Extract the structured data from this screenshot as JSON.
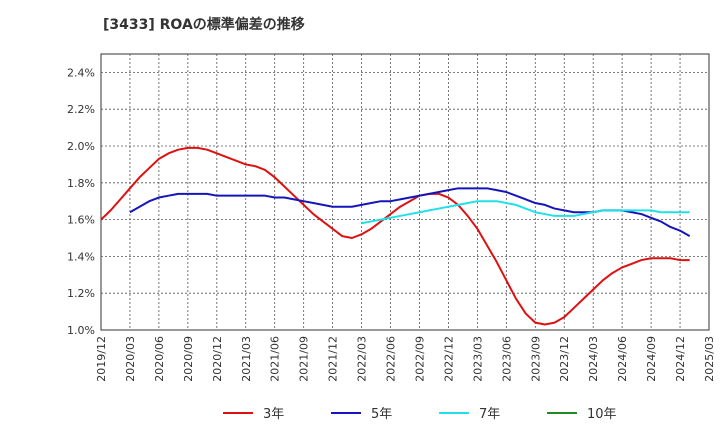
{
  "chart_data": {
    "type": "line",
    "title": "[3433]  ROAの標準偏差の推移",
    "xlabel": "",
    "ylabel": "",
    "ylim": [
      1.0,
      2.5
    ],
    "y_ticks": [
      "1.0%",
      "1.2%",
      "1.4%",
      "1.6%",
      "1.8%",
      "2.0%",
      "2.2%",
      "2.4%"
    ],
    "y_tick_values": [
      1.0,
      1.2,
      1.4,
      1.6,
      1.8,
      2.0,
      2.2,
      2.4
    ],
    "x_ticks": [
      "2019/12",
      "2020/03",
      "2020/06",
      "2020/09",
      "2020/12",
      "2021/03",
      "2021/06",
      "2021/09",
      "2021/12",
      "2022/03",
      "2022/06",
      "2022/09",
      "2022/12",
      "2023/03",
      "2023/06",
      "2023/09",
      "2023/12",
      "2024/03",
      "2024/06",
      "2024/09",
      "2024/12",
      "2025/03"
    ],
    "grid": true,
    "legend_position": "bottom",
    "series": [
      {
        "name": "3年",
        "color": "#dd1111",
        "points": [
          [
            "2019/12",
            1.6
          ],
          [
            "2020/01",
            1.65
          ],
          [
            "2020/02",
            1.71
          ],
          [
            "2020/03",
            1.77
          ],
          [
            "2020/04",
            1.83
          ],
          [
            "2020/05",
            1.88
          ],
          [
            "2020/06",
            1.93
          ],
          [
            "2020/07",
            1.96
          ],
          [
            "2020/08",
            1.98
          ],
          [
            "2020/09",
            1.99
          ],
          [
            "2020/10",
            1.99
          ],
          [
            "2020/11",
            1.98
          ],
          [
            "2020/12",
            1.96
          ],
          [
            "2021/01",
            1.94
          ],
          [
            "2021/02",
            1.92
          ],
          [
            "2021/03",
            1.9
          ],
          [
            "2021/04",
            1.89
          ],
          [
            "2021/05",
            1.87
          ],
          [
            "2021/06",
            1.83
          ],
          [
            "2021/07",
            1.78
          ],
          [
            "2021/08",
            1.73
          ],
          [
            "2021/09",
            1.68
          ],
          [
            "2021/10",
            1.63
          ],
          [
            "2021/11",
            1.59
          ],
          [
            "2021/12",
            1.55
          ],
          [
            "2022/01",
            1.51
          ],
          [
            "2022/02",
            1.5
          ],
          [
            "2022/03",
            1.52
          ],
          [
            "2022/04",
            1.55
          ],
          [
            "2022/05",
            1.59
          ],
          [
            "2022/06",
            1.63
          ],
          [
            "2022/07",
            1.67
          ],
          [
            "2022/08",
            1.7
          ],
          [
            "2022/09",
            1.73
          ],
          [
            "2022/10",
            1.74
          ],
          [
            "2022/11",
            1.74
          ],
          [
            "2022/12",
            1.72
          ],
          [
            "2023/01",
            1.68
          ],
          [
            "2023/02",
            1.62
          ],
          [
            "2023/03",
            1.55
          ],
          [
            "2023/04",
            1.46
          ],
          [
            "2023/05",
            1.37
          ],
          [
            "2023/06",
            1.27
          ],
          [
            "2023/07",
            1.17
          ],
          [
            "2023/08",
            1.09
          ],
          [
            "2023/09",
            1.04
          ],
          [
            "2023/10",
            1.03
          ],
          [
            "2023/11",
            1.04
          ],
          [
            "2023/12",
            1.07
          ],
          [
            "2024/01",
            1.12
          ],
          [
            "2024/02",
            1.17
          ],
          [
            "2024/03",
            1.22
          ],
          [
            "2024/04",
            1.27
          ],
          [
            "2024/05",
            1.31
          ],
          [
            "2024/06",
            1.34
          ],
          [
            "2024/07",
            1.36
          ],
          [
            "2024/08",
            1.38
          ],
          [
            "2024/09",
            1.39
          ],
          [
            "2024/10",
            1.39
          ],
          [
            "2024/11",
            1.39
          ],
          [
            "2024/12",
            1.38
          ],
          [
            "2025/01",
            1.38
          ]
        ]
      },
      {
        "name": "5年",
        "color": "#1515bb",
        "points": [
          [
            "2020/03",
            1.64
          ],
          [
            "2020/04",
            1.67
          ],
          [
            "2020/05",
            1.7
          ],
          [
            "2020/06",
            1.72
          ],
          [
            "2020/07",
            1.73
          ],
          [
            "2020/08",
            1.74
          ],
          [
            "2020/09",
            1.74
          ],
          [
            "2020/10",
            1.74
          ],
          [
            "2020/11",
            1.74
          ],
          [
            "2020/12",
            1.73
          ],
          [
            "2021/01",
            1.73
          ],
          [
            "2021/02",
            1.73
          ],
          [
            "2021/03",
            1.73
          ],
          [
            "2021/04",
            1.73
          ],
          [
            "2021/05",
            1.73
          ],
          [
            "2021/06",
            1.72
          ],
          [
            "2021/07",
            1.72
          ],
          [
            "2021/08",
            1.71
          ],
          [
            "2021/09",
            1.7
          ],
          [
            "2021/10",
            1.69
          ],
          [
            "2021/11",
            1.68
          ],
          [
            "2021/12",
            1.67
          ],
          [
            "2022/01",
            1.67
          ],
          [
            "2022/02",
            1.67
          ],
          [
            "2022/03",
            1.68
          ],
          [
            "2022/04",
            1.69
          ],
          [
            "2022/05",
            1.7
          ],
          [
            "2022/06",
            1.7
          ],
          [
            "2022/07",
            1.71
          ],
          [
            "2022/08",
            1.72
          ],
          [
            "2022/09",
            1.73
          ],
          [
            "2022/10",
            1.74
          ],
          [
            "2022/11",
            1.75
          ],
          [
            "2022/12",
            1.76
          ],
          [
            "2023/01",
            1.77
          ],
          [
            "2023/02",
            1.77
          ],
          [
            "2023/03",
            1.77
          ],
          [
            "2023/04",
            1.77
          ],
          [
            "2023/05",
            1.76
          ],
          [
            "2023/06",
            1.75
          ],
          [
            "2023/07",
            1.73
          ],
          [
            "2023/08",
            1.71
          ],
          [
            "2023/09",
            1.69
          ],
          [
            "2023/10",
            1.68
          ],
          [
            "2023/11",
            1.66
          ],
          [
            "2023/12",
            1.65
          ],
          [
            "2024/01",
            1.64
          ],
          [
            "2024/02",
            1.64
          ],
          [
            "2024/03",
            1.64
          ],
          [
            "2024/04",
            1.65
          ],
          [
            "2024/05",
            1.65
          ],
          [
            "2024/06",
            1.65
          ],
          [
            "2024/07",
            1.64
          ],
          [
            "2024/08",
            1.63
          ],
          [
            "2024/09",
            1.61
          ],
          [
            "2024/10",
            1.59
          ],
          [
            "2024/11",
            1.56
          ],
          [
            "2024/12",
            1.54
          ],
          [
            "2025/01",
            1.51
          ]
        ]
      },
      {
        "name": "7年",
        "color": "#22e0e8",
        "points": [
          [
            "2022/03",
            1.58
          ],
          [
            "2022/04",
            1.59
          ],
          [
            "2022/05",
            1.6
          ],
          [
            "2022/06",
            1.61
          ],
          [
            "2022/07",
            1.62
          ],
          [
            "2022/08",
            1.63
          ],
          [
            "2022/09",
            1.64
          ],
          [
            "2022/10",
            1.65
          ],
          [
            "2022/11",
            1.66
          ],
          [
            "2022/12",
            1.67
          ],
          [
            "2023/01",
            1.68
          ],
          [
            "2023/02",
            1.69
          ],
          [
            "2023/03",
            1.7
          ],
          [
            "2023/04",
            1.7
          ],
          [
            "2023/05",
            1.7
          ],
          [
            "2023/06",
            1.69
          ],
          [
            "2023/07",
            1.68
          ],
          [
            "2023/08",
            1.66
          ],
          [
            "2023/09",
            1.64
          ],
          [
            "2023/10",
            1.63
          ],
          [
            "2023/11",
            1.62
          ],
          [
            "2023/12",
            1.62
          ],
          [
            "2024/01",
            1.62
          ],
          [
            "2024/02",
            1.63
          ],
          [
            "2024/03",
            1.64
          ],
          [
            "2024/04",
            1.65
          ],
          [
            "2024/05",
            1.65
          ],
          [
            "2024/06",
            1.65
          ],
          [
            "2024/07",
            1.65
          ],
          [
            "2024/08",
            1.65
          ],
          [
            "2024/09",
            1.65
          ],
          [
            "2024/10",
            1.64
          ],
          [
            "2024/11",
            1.64
          ],
          [
            "2024/12",
            1.64
          ],
          [
            "2025/01",
            1.64
          ]
        ]
      },
      {
        "name": "10年",
        "color": "#228822",
        "points": []
      }
    ]
  }
}
